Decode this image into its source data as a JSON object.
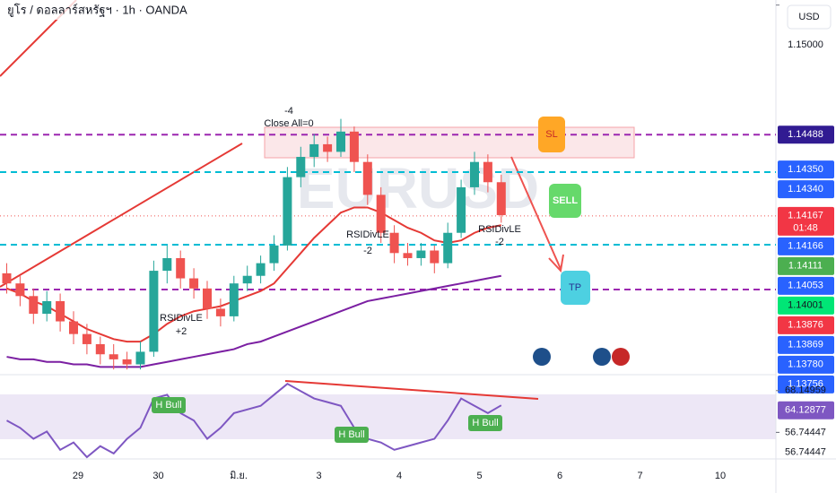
{
  "header": {
    "title": "ยูโร / ดอลลาร์สหรัฐฯ · 1h · OANDA",
    "currency": "USD",
    "watermark": "EURUSD"
  },
  "annotations": [
    "-4",
    "Close All=0",
    "RSIDivLE",
    "+2",
    "RSIDivLE",
    "-2",
    "RSIDivLE",
    "-2",
    "SL",
    "SELL",
    "TP",
    "H Bull",
    "H Bull",
    "H Bull"
  ],
  "chart_data": {
    "type": "candlestick",
    "up_color": "#26a69a",
    "down_color": "#ef5350",
    "x_labels": [
      "29",
      "30",
      "มิ.ย.",
      "3",
      "4",
      "5",
      "6",
      "7",
      "10"
    ],
    "ylim": [
      1.1355,
      1.1502
    ],
    "candles": [
      [
        1.1394,
        1.1398,
        1.1386,
        1.139
      ],
      [
        1.139,
        1.1393,
        1.1381,
        1.1385
      ],
      [
        1.1385,
        1.1388,
        1.1374,
        1.1378
      ],
      [
        1.1378,
        1.1387,
        1.1375,
        1.1383
      ],
      [
        1.1383,
        1.1386,
        1.1371,
        1.1375
      ],
      [
        1.1375,
        1.1379,
        1.1366,
        1.137
      ],
      [
        1.137,
        1.1374,
        1.1362,
        1.1366
      ],
      [
        1.1366,
        1.1369,
        1.1358,
        1.1362
      ],
      [
        1.1362,
        1.1366,
        1.1356,
        1.136
      ],
      [
        1.136,
        1.1363,
        1.1356,
        1.1358
      ],
      [
        1.1358,
        1.1367,
        1.1356,
        1.1363
      ],
      [
        1.1363,
        1.1399,
        1.1361,
        1.1395
      ],
      [
        1.1395,
        1.1405,
        1.139,
        1.14
      ],
      [
        1.14,
        1.1403,
        1.1388,
        1.1392
      ],
      [
        1.1392,
        1.1396,
        1.1384,
        1.1388
      ],
      [
        1.1388,
        1.1391,
        1.1376,
        1.138
      ],
      [
        1.138,
        1.1384,
        1.1373,
        1.1377
      ],
      [
        1.1377,
        1.1393,
        1.1375,
        1.139
      ],
      [
        1.139,
        1.1397,
        1.1387,
        1.1393
      ],
      [
        1.1393,
        1.1401,
        1.139,
        1.1398
      ],
      [
        1.1398,
        1.1409,
        1.1395,
        1.1405
      ],
      [
        1.1405,
        1.1436,
        1.1403,
        1.1432
      ],
      [
        1.1432,
        1.1444,
        1.1428,
        1.144
      ],
      [
        1.144,
        1.1449,
        1.1436,
        1.1445
      ],
      [
        1.1445,
        1.1448,
        1.1438,
        1.1442
      ],
      [
        1.1442,
        1.1455,
        1.144,
        1.145
      ],
      [
        1.145,
        1.1452,
        1.1434,
        1.1438
      ],
      [
        1.1438,
        1.1441,
        1.1421,
        1.1425
      ],
      [
        1.1425,
        1.1428,
        1.1406,
        1.141
      ],
      [
        1.141,
        1.1413,
        1.1398,
        1.1402
      ],
      [
        1.1402,
        1.1406,
        1.1397,
        1.14
      ],
      [
        1.14,
        1.1406,
        1.1397,
        1.1403
      ],
      [
        1.1403,
        1.1405,
        1.1394,
        1.1398
      ],
      [
        1.1398,
        1.1414,
        1.1396,
        1.141
      ],
      [
        1.141,
        1.1431,
        1.1408,
        1.1428
      ],
      [
        1.1428,
        1.1442,
        1.1425,
        1.1438
      ],
      [
        1.1438,
        1.1441,
        1.1426,
        1.143
      ],
      [
        1.143,
        1.1433,
        1.1414,
        1.1417
      ]
    ],
    "lines": [
      {
        "color": "#e53935",
        "values": [
          1.1388,
          1.1386,
          1.1383,
          1.1381,
          1.1378,
          1.1375,
          1.1372,
          1.137,
          1.1368,
          1.1367,
          1.1367,
          1.137,
          1.1374,
          1.1377,
          1.1379,
          1.138,
          1.1381,
          1.1383,
          1.1385,
          1.1387,
          1.139,
          1.1396,
          1.1402,
          1.1408,
          1.1413,
          1.1418,
          1.142,
          1.142,
          1.1418,
          1.1415,
          1.1412,
          1.141,
          1.1407,
          1.1406,
          1.1407,
          1.141,
          1.1412,
          1.1413
        ]
      },
      {
        "color": "#7b1fa2",
        "values": [
          1.1361,
          1.136,
          1.136,
          1.1359,
          1.1359,
          1.1358,
          1.1358,
          1.1357,
          1.1357,
          1.1357,
          1.1357,
          1.1358,
          1.1359,
          1.136,
          1.1361,
          1.1362,
          1.1363,
          1.1364,
          1.1366,
          1.1367,
          1.1369,
          1.1371,
          1.1373,
          1.1375,
          1.1377,
          1.1379,
          1.1381,
          1.1383,
          1.1384,
          1.1385,
          1.1386,
          1.1387,
          1.1388,
          1.1389,
          1.139,
          1.1391,
          1.1392,
          1.1393
        ]
      }
    ],
    "levels": [
      {
        "value": 1.14488,
        "color": "#9c27b0",
        "style": "dashed"
      },
      {
        "value": 1.1434,
        "color": "#00bcd4",
        "style": "dashed"
      },
      {
        "value": 1.14167,
        "color": "#ef5350",
        "style": "dotted"
      },
      {
        "value": 1.14053,
        "color": "#00bcd4",
        "style": "dashed"
      },
      {
        "value": 1.13876,
        "color": "#9c27b0",
        "style": "dashed"
      }
    ],
    "price_tags": [
      {
        "value": 1.15,
        "label": "1.15000",
        "color": null
      },
      {
        "value": 1.14488,
        "label": "1.14488",
        "color": "#311b92"
      },
      {
        "value": 1.1435,
        "label": "1.14350",
        "color": "#2962ff"
      },
      {
        "value": 1.1434,
        "label": "1.14340",
        "color": "#2962ff"
      },
      {
        "value": 1.14167,
        "label": "1.14167",
        "color": "#f23645",
        "countdown": "01:48"
      },
      {
        "value": 1.14166,
        "label": "1.14166",
        "color": "#2962ff"
      },
      {
        "value": 1.14111,
        "label": "1.14111",
        "color": "#4caf50"
      },
      {
        "value": 1.14053,
        "label": "1.14053",
        "color": "#2962ff"
      },
      {
        "value": 1.14001,
        "label": "1.14001",
        "color": "#00e676"
      },
      {
        "value": 1.13876,
        "label": "1.13876",
        "color": "#f23645"
      },
      {
        "value": 1.13869,
        "label": "1.13869",
        "color": "#2962ff"
      },
      {
        "value": 1.1378,
        "label": "1.13780",
        "color": "#2962ff"
      },
      {
        "value": 1.13756,
        "label": "1.13756",
        "color": "#2962ff"
      }
    ],
    "rsi": {
      "ylim": [
        50,
        72
      ],
      "color": "#7e57c2",
      "values": [
        60,
        58,
        55,
        57,
        52,
        54,
        50,
        53,
        51,
        55,
        58,
        66,
        67,
        62,
        60,
        55,
        58,
        62,
        63,
        64,
        67,
        70,
        68,
        66,
        65,
        64,
        58,
        55,
        54,
        52,
        53,
        54,
        55,
        60,
        66,
        64,
        62,
        64.13
      ],
      "tags": [
        {
          "value": 68.14959,
          "label": "68.14959",
          "color": null
        },
        {
          "value": 64.12877,
          "label": "64.12877",
          "color": "#7e57c2"
        },
        {
          "value": 56.74447,
          "label": "56.74447",
          "color": null
        },
        {
          "value": 56.74447,
          "label": "56.74447",
          "color": null
        }
      ]
    }
  }
}
